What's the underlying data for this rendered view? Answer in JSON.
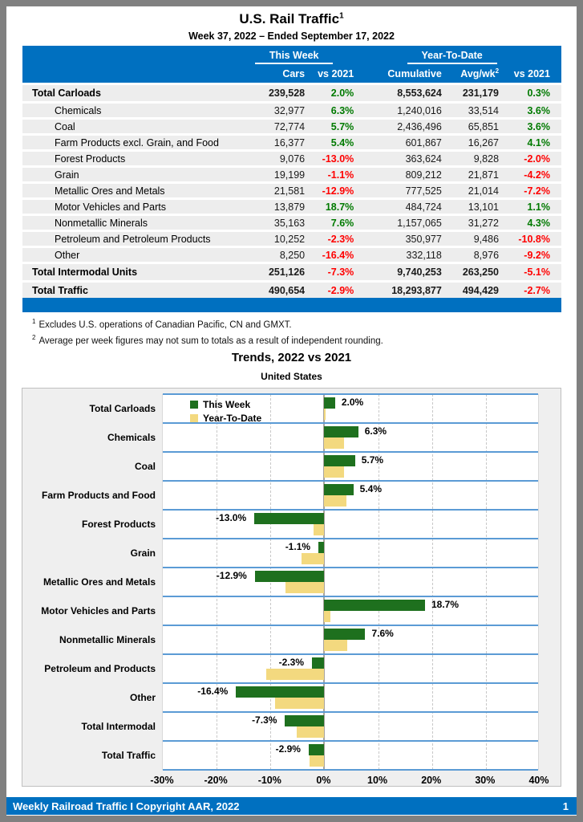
{
  "page": {
    "title": "U.S. Rail Traffic",
    "title_sup": "1",
    "subtitle": "Week 37, 2022 – Ended September 17, 2022"
  },
  "colors": {
    "header_blue": "#0070C0",
    "positive_green": "#007A00",
    "negative_red": "#FF0000",
    "band_line_blue": "#5B9BD5",
    "bar_green": "#1E701E",
    "bar_yellow": "#F3D97F",
    "row_stripe": "#EDEDED",
    "chart_bg": "#EFEFEF"
  },
  "table": {
    "group_headers": {
      "this_week": "This Week",
      "year_to_date": "Year-To-Date"
    },
    "columns": {
      "cars": "Cars",
      "wk_vs": "vs 2021",
      "cumulative": "Cumulative",
      "avg": "Avg/wk",
      "avg_sup": "2",
      "ytd_vs": "vs 2021"
    },
    "rows": [
      {
        "label": "Total Carloads",
        "cars": "239,528",
        "wk_vs": "2.0%",
        "cumulative": "8,553,624",
        "avg": "231,179",
        "ytd_vs": "0.3%",
        "bold": true,
        "indent": false
      },
      {
        "label": "Chemicals",
        "cars": "32,977",
        "wk_vs": "6.3%",
        "cumulative": "1,240,016",
        "avg": "33,514",
        "ytd_vs": "3.6%",
        "bold": false,
        "indent": true
      },
      {
        "label": "Coal",
        "cars": "72,774",
        "wk_vs": "5.7%",
        "cumulative": "2,436,496",
        "avg": "65,851",
        "ytd_vs": "3.6%",
        "bold": false,
        "indent": true
      },
      {
        "label": "Farm Products excl. Grain, and Food",
        "cars": "16,377",
        "wk_vs": "5.4%",
        "cumulative": "601,867",
        "avg": "16,267",
        "ytd_vs": "4.1%",
        "bold": false,
        "indent": true
      },
      {
        "label": "Forest Products",
        "cars": "9,076",
        "wk_vs": "-13.0%",
        "cumulative": "363,624",
        "avg": "9,828",
        "ytd_vs": "-2.0%",
        "bold": false,
        "indent": true
      },
      {
        "label": "Grain",
        "cars": "19,199",
        "wk_vs": "-1.1%",
        "cumulative": "809,212",
        "avg": "21,871",
        "ytd_vs": "-4.2%",
        "bold": false,
        "indent": true
      },
      {
        "label": "Metallic Ores and Metals",
        "cars": "21,581",
        "wk_vs": "-12.9%",
        "cumulative": "777,525",
        "avg": "21,014",
        "ytd_vs": "-7.2%",
        "bold": false,
        "indent": true
      },
      {
        "label": "Motor Vehicles and Parts",
        "cars": "13,879",
        "wk_vs": "18.7%",
        "cumulative": "484,724",
        "avg": "13,101",
        "ytd_vs": "1.1%",
        "bold": false,
        "indent": true
      },
      {
        "label": "Nonmetallic Minerals",
        "cars": "35,163",
        "wk_vs": "7.6%",
        "cumulative": "1,157,065",
        "avg": "31,272",
        "ytd_vs": "4.3%",
        "bold": false,
        "indent": true
      },
      {
        "label": "Petroleum and Petroleum Products",
        "cars": "10,252",
        "wk_vs": "-2.3%",
        "cumulative": "350,977",
        "avg": "9,486",
        "ytd_vs": "-10.8%",
        "bold": false,
        "indent": true
      },
      {
        "label": "Other",
        "cars": "8,250",
        "wk_vs": "-16.4%",
        "cumulative": "332,118",
        "avg": "8,976",
        "ytd_vs": "-9.2%",
        "bold": false,
        "indent": true
      },
      {
        "label": "Total Intermodal Units",
        "cars": "251,126",
        "wk_vs": "-7.3%",
        "cumulative": "9,740,253",
        "avg": "263,250",
        "ytd_vs": "-5.1%",
        "bold": true,
        "indent": false
      },
      {
        "label": "Total Traffic",
        "cars": "490,654",
        "wk_vs": "-2.9%",
        "cumulative": "18,293,877",
        "avg": "494,429",
        "ytd_vs": "-2.7%",
        "bold": true,
        "indent": false
      }
    ]
  },
  "footnotes": [
    {
      "sup": "1",
      "text": "Excludes U.S. operations of Canadian Pacific, CN and GMXT."
    },
    {
      "sup": "2",
      "text": "Average per week figures may not sum to totals as a result of independent rounding."
    }
  ],
  "chart_data": {
    "type": "bar",
    "orientation": "horizontal",
    "title": "Trends, 2022 vs 2021",
    "subtitle": "United States",
    "categories": [
      "Total Carloads",
      "Chemicals",
      "Coal",
      "Farm Products and Food",
      "Forest Products",
      "Grain",
      "Metallic Ores and Metals",
      "Motor Vehicles and Parts",
      "Nonmetallic Minerals",
      "Petroleum and Products",
      "Other",
      "Total Intermodal",
      "Total Traffic"
    ],
    "series": [
      {
        "name": "This Week",
        "color": "#1E701E",
        "values": [
          2.0,
          6.3,
          5.7,
          5.4,
          -13.0,
          -1.1,
          -12.9,
          18.7,
          7.6,
          -2.3,
          -16.4,
          -7.3,
          -2.9
        ]
      },
      {
        "name": "Year-To-Date",
        "color": "#F3D97F",
        "values": [
          0.3,
          3.6,
          3.6,
          4.1,
          -2.0,
          -4.2,
          -7.2,
          1.1,
          4.3,
          -10.8,
          -9.2,
          -5.1,
          -2.7
        ]
      }
    ],
    "xlim": [
      -30,
      40
    ],
    "x_ticks": [
      "-30%",
      "-20%",
      "-10%",
      "0%",
      "10%",
      "20%",
      "30%",
      "40%"
    ],
    "data_labels_series": "This Week",
    "legend_position": "inside-top-left",
    "grid": "vertical-dashed"
  },
  "footer": {
    "left": "Weekly Railroad Traffic I Copyright AAR, 2022",
    "page": "1"
  }
}
